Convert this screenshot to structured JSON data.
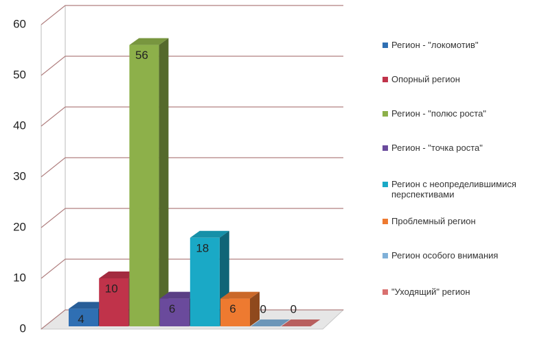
{
  "chart_data": {
    "type": "bar3d",
    "series": [
      {
        "name": "Регион - \"локомотив\"",
        "color": "#2f6fb3",
        "values": [
          4
        ]
      },
      {
        "name": "Опорный регион",
        "color": "#c0334a",
        "values": [
          10
        ]
      },
      {
        "name": "Регион - \"полюс роста\"",
        "color": "#8db04a",
        "values": [
          56
        ]
      },
      {
        "name": "Регион - \"точка роста\"",
        "color": "#6a4a9c",
        "values": [
          6
        ]
      },
      {
        "name": "Регион с неопределившимися перспективами",
        "color": "#1aa9c6",
        "values": [
          18
        ]
      },
      {
        "name": "Проблемный регион",
        "color": "#ee7a30",
        "values": [
          6
        ]
      },
      {
        "name": "Регион особого внимания",
        "color": "#7fb0d8",
        "values": [
          0
        ]
      },
      {
        "name": "\"Уходящий\" регион",
        "color": "#d9706f",
        "values": [
          0
        ]
      }
    ],
    "ylim": [
      0,
      60
    ],
    "yticks": [
      0,
      10,
      20,
      30,
      40,
      50,
      60
    ],
    "grid": true,
    "legend": "right"
  }
}
